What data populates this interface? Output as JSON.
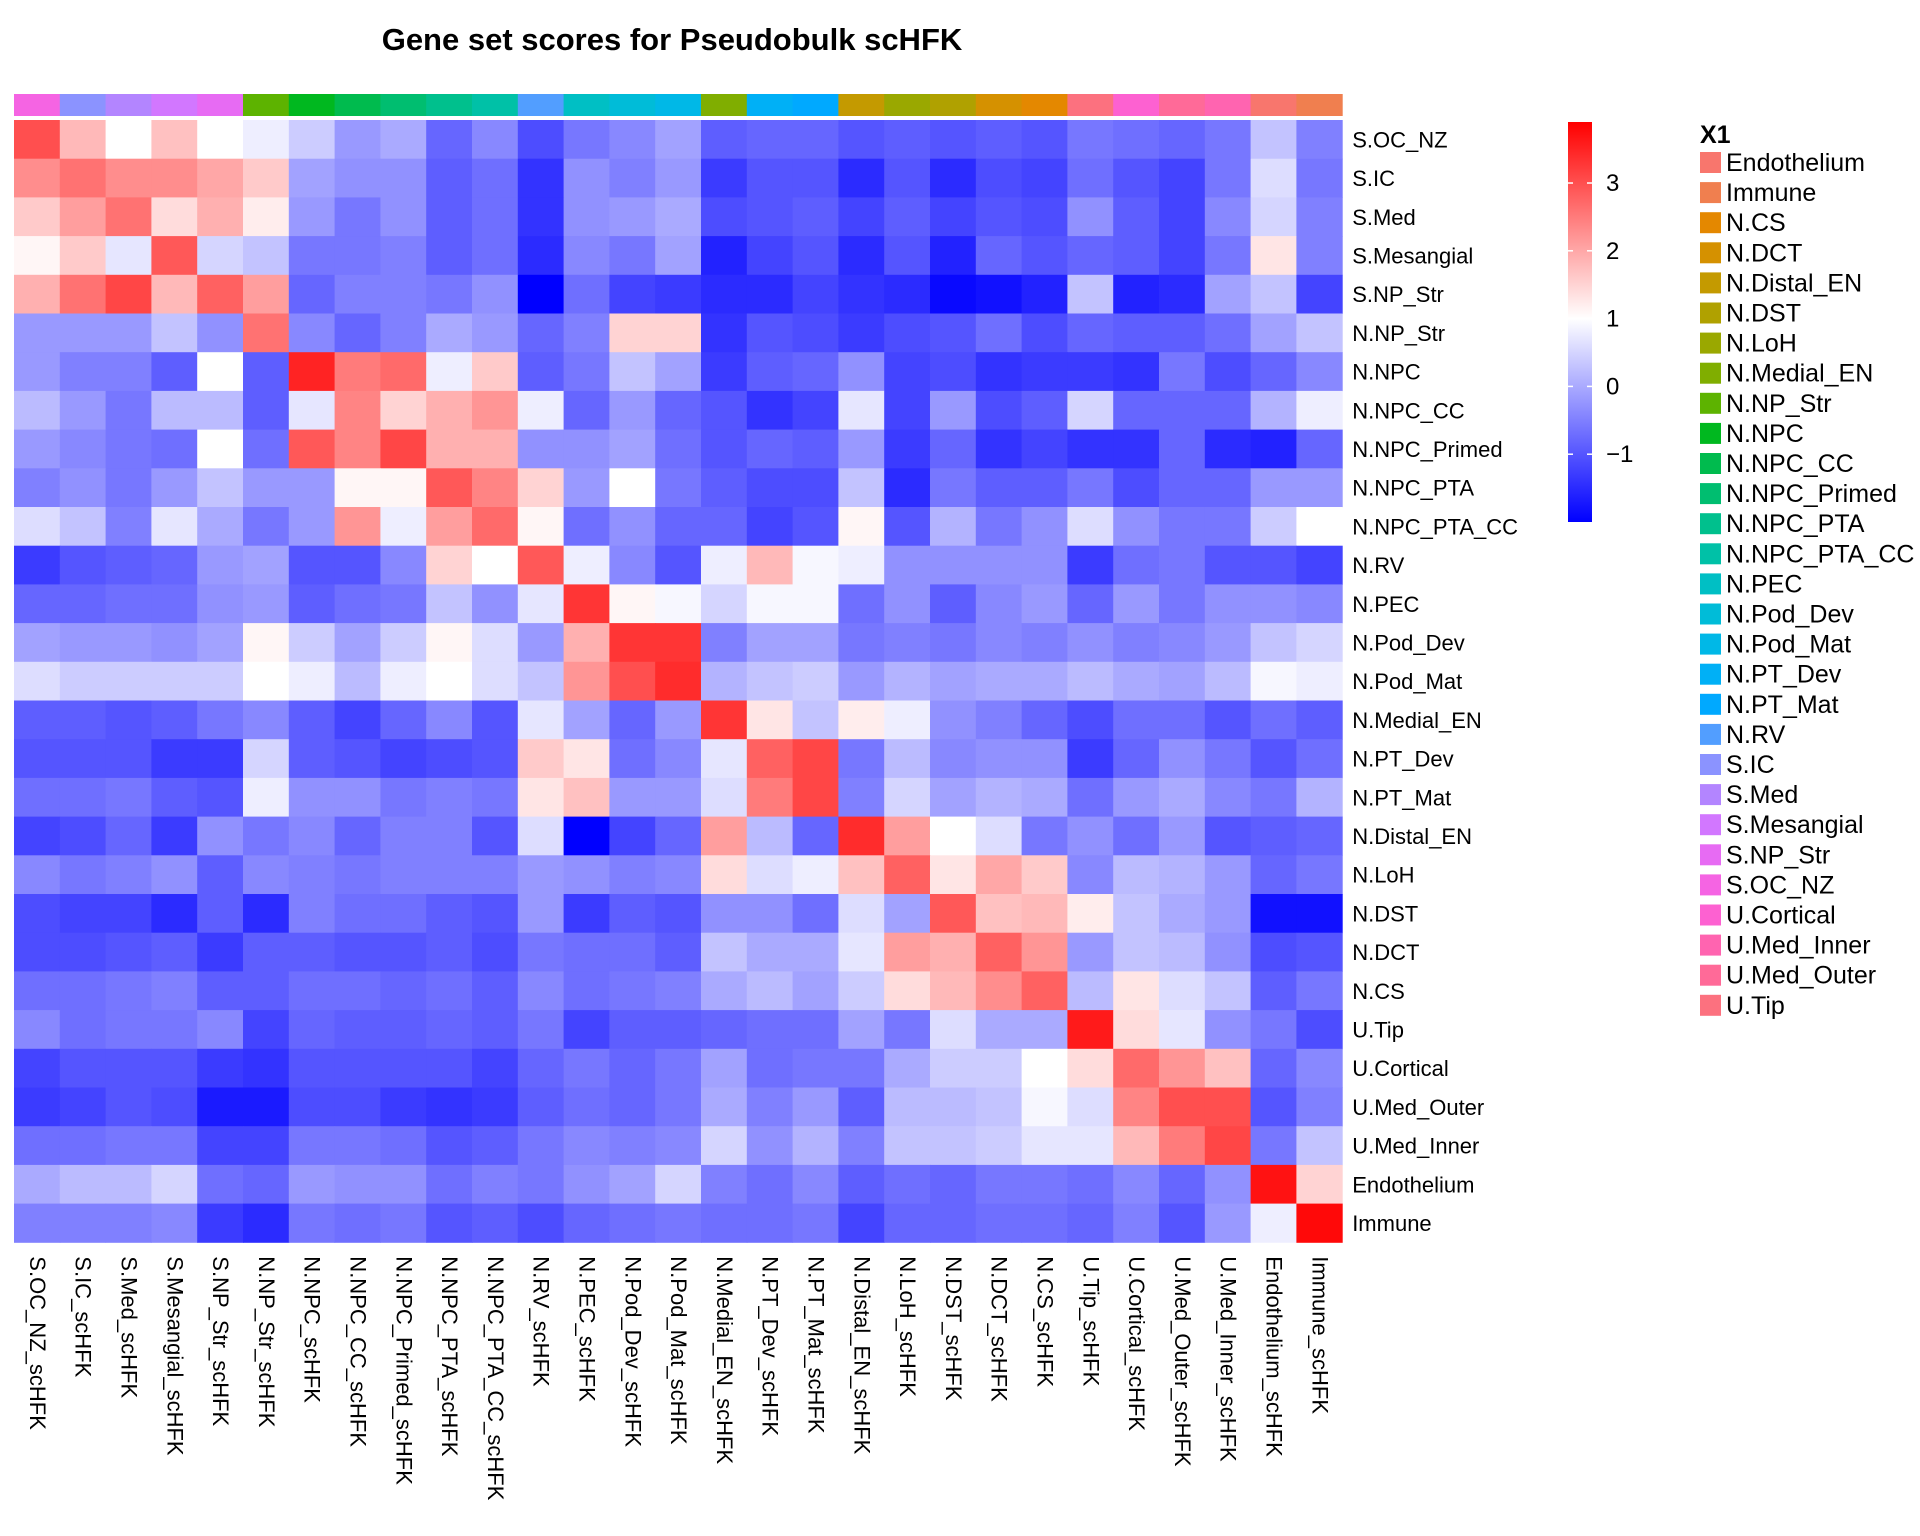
{
  "chart_data": {
    "type": "heatmap",
    "title": "Gene set scores for Pseudobulk scHFK",
    "rows": [
      "S.OC_NZ",
      "S.IC",
      "S.Med",
      "S.Mesangial",
      "S.NP_Str",
      "N.NP_Str",
      "N.NPC",
      "N.NPC_CC",
      "N.NPC_Primed",
      "N.NPC_PTA",
      "N.NPC_PTA_CC",
      "N.RV",
      "N.PEC",
      "N.Pod_Dev",
      "N.Pod_Mat",
      "N.Medial_EN",
      "N.PT_Dev",
      "N.PT_Mat",
      "N.Distal_EN",
      "N.LoH",
      "N.DST",
      "N.DCT",
      "N.CS",
      "U.Tip",
      "U.Cortical",
      "U.Med_Outer",
      "U.Med_Inner",
      "Endothelium",
      "Immune"
    ],
    "columns": [
      "S.OC_NZ_scHFK",
      "S.IC_scHFK",
      "S.Med_scHFK",
      "S.Mesangial_scHFK",
      "S.NP_Str_scHFK",
      "N.NP_Str_scHFK",
      "N.NPC_scHFK",
      "N.NPC_CC_scHFK",
      "N.NPC_Primed_scHFK",
      "N.NPC_PTA_scHFK",
      "N.NPC_PTA_CC_scHFK",
      "N.RV_scHFK",
      "N.PEC_scHFK",
      "N.Pod_Dev_scHFK",
      "N.Pod_Mat_scHFK",
      "N.Medial_EN_scHFK",
      "N.PT_Dev_scHFK",
      "N.PT_Mat_scHFK",
      "N.Distal_EN_scHFK",
      "N.LoH_scHFK",
      "N.DST_scHFK",
      "N.DCT_scHFK",
      "N.CS_scHFK",
      "U.Tip_scHFK",
      "U.Cortical_scHFK",
      "U.Med_Outer_scHFK",
      "U.Med_Inner_scHFK",
      "Endothelium_scHFK",
      "Immune_scHFK"
    ],
    "values": [
      [
        3.0,
        1.8,
        1.0,
        1.7,
        1.0,
        0.8,
        0.4,
        -0.2,
        0.0,
        -0.8,
        -0.4,
        -1.1,
        -0.6,
        -0.4,
        -0.1,
        -0.9,
        -0.8,
        -0.8,
        -1.0,
        -0.9,
        -1.0,
        -0.9,
        -1.0,
        -0.6,
        -0.7,
        -0.8,
        -0.6,
        0.3,
        -0.5
      ],
      [
        2.3,
        2.6,
        2.3,
        2.3,
        2.0,
        1.6,
        -0.1,
        -0.3,
        -0.3,
        -0.9,
        -0.7,
        -1.4,
        -0.3,
        -0.5,
        -0.2,
        -1.3,
        -1.0,
        -1.0,
        -1.5,
        -1.0,
        -1.5,
        -1.1,
        -1.2,
        -0.7,
        -1.0,
        -1.2,
        -0.6,
        0.6,
        -0.6
      ],
      [
        1.6,
        2.1,
        2.6,
        1.4,
        1.9,
        1.2,
        -0.2,
        -0.6,
        -0.3,
        -0.9,
        -0.7,
        -1.4,
        -0.3,
        -0.2,
        0.0,
        -1.1,
        -1.0,
        -0.9,
        -1.2,
        -0.9,
        -1.2,
        -1.0,
        -1.1,
        -0.3,
        -0.9,
        -1.2,
        -0.4,
        0.5,
        -0.5
      ],
      [
        1.1,
        1.6,
        0.7,
        2.9,
        0.5,
        0.3,
        -0.6,
        -0.6,
        -0.5,
        -0.9,
        -0.7,
        -1.5,
        -0.4,
        -0.6,
        -0.1,
        -1.6,
        -1.2,
        -1.0,
        -1.5,
        -1.0,
        -1.6,
        -0.8,
        -1.0,
        -0.8,
        -0.9,
        -1.2,
        -0.6,
        1.3,
        -0.5
      ],
      [
        1.9,
        2.6,
        3.1,
        1.8,
        2.8,
        2.1,
        -0.8,
        -0.5,
        -0.5,
        -0.6,
        -0.3,
        -2.0,
        -0.7,
        -1.2,
        -1.3,
        -1.5,
        -1.5,
        -1.2,
        -1.4,
        -1.5,
        -1.9,
        -1.8,
        -1.6,
        0.3,
        -1.6,
        -1.5,
        -0.1,
        0.3,
        -1.2
      ],
      [
        -0.2,
        -0.2,
        -0.2,
        0.3,
        -0.3,
        2.6,
        -0.4,
        -0.8,
        -0.5,
        0.0,
        -0.2,
        -0.8,
        -0.5,
        1.5,
        1.5,
        -1.4,
        -1.0,
        -1.1,
        -1.3,
        -1.1,
        -1.0,
        -0.7,
        -1.1,
        -0.8,
        -0.9,
        -0.9,
        -0.7,
        -0.1,
        0.3
      ],
      [
        -0.2,
        -0.5,
        -0.5,
        -0.9,
        1.0,
        -0.9,
        3.5,
        2.5,
        2.7,
        0.8,
        1.6,
        -0.9,
        -0.6,
        0.3,
        -0.1,
        -1.3,
        -0.9,
        -0.8,
        -0.3,
        -1.2,
        -1.1,
        -1.4,
        -1.3,
        -1.3,
        -1.4,
        -0.6,
        -1.1,
        -0.8,
        -0.4
      ],
      [
        0.2,
        -0.2,
        -0.6,
        0.2,
        0.2,
        -0.9,
        0.7,
        2.4,
        1.5,
        1.9,
        2.2,
        0.8,
        -0.8,
        -0.2,
        -0.8,
        -1.0,
        -1.4,
        -1.2,
        0.7,
        -1.2,
        -0.2,
        -1.1,
        -0.9,
        0.5,
        -0.8,
        -0.8,
        -0.8,
        0.1,
        0.8
      ],
      [
        -0.2,
        -0.4,
        -0.6,
        -0.7,
        1.0,
        -0.7,
        2.9,
        2.4,
        3.1,
        1.9,
        1.9,
        -0.3,
        -0.3,
        -0.1,
        -0.7,
        -1.0,
        -0.8,
        -0.9,
        -0.2,
        -1.3,
        -0.8,
        -1.4,
        -1.2,
        -1.4,
        -1.4,
        -0.8,
        -1.5,
        -1.6,
        -0.8
      ],
      [
        -0.5,
        -0.3,
        -0.6,
        -0.2,
        0.3,
        -0.2,
        -0.2,
        1.1,
        1.1,
        2.9,
        2.4,
        1.5,
        -0.2,
        1.0,
        -0.6,
        -0.9,
        -1.1,
        -1.1,
        0.3,
        -1.5,
        -0.6,
        -0.9,
        -0.9,
        -0.6,
        -1.1,
        -0.8,
        -0.8,
        -0.2,
        -0.2
      ],
      [
        0.6,
        0.3,
        -0.5,
        0.7,
        0.0,
        -0.6,
        -0.2,
        2.2,
        0.8,
        2.1,
        2.7,
        1.1,
        -0.7,
        -0.3,
        -0.8,
        -0.8,
        -1.2,
        -1.0,
        1.1,
        -1.0,
        0.1,
        -0.6,
        -0.3,
        0.6,
        -0.3,
        -0.6,
        -0.6,
        0.4,
        1.0
      ],
      [
        -1.3,
        -1.0,
        -0.9,
        -0.8,
        -0.2,
        -0.1,
        -1.0,
        -1.0,
        -0.4,
        1.5,
        1.0,
        2.9,
        0.8,
        -0.4,
        -1.0,
        0.8,
        1.8,
        0.9,
        0.8,
        -0.3,
        -0.3,
        -0.3,
        -0.3,
        -1.3,
        -0.7,
        -0.6,
        -1.0,
        -1.0,
        -1.2
      ],
      [
        -0.8,
        -0.8,
        -0.7,
        -0.7,
        -0.3,
        -0.2,
        -0.9,
        -0.7,
        -0.6,
        0.3,
        -0.3,
        0.7,
        3.3,
        1.1,
        0.9,
        0.5,
        0.9,
        0.9,
        -0.7,
        -0.3,
        -0.9,
        -0.4,
        -0.2,
        -0.8,
        -0.2,
        -0.6,
        -0.3,
        -0.3,
        -0.4
      ],
      [
        -0.1,
        -0.2,
        -0.2,
        -0.3,
        -0.1,
        1.1,
        0.4,
        -0.1,
        0.4,
        1.1,
        0.6,
        -0.2,
        1.9,
        3.3,
        3.3,
        -0.5,
        -0.1,
        -0.1,
        -0.6,
        -0.5,
        -0.6,
        -0.4,
        -0.5,
        -0.3,
        -0.5,
        -0.4,
        -0.2,
        0.3,
        0.5
      ],
      [
        0.6,
        0.4,
        0.4,
        0.4,
        0.4,
        1.0,
        0.8,
        0.2,
        0.8,
        1.0,
        0.6,
        0.3,
        2.2,
        3.0,
        3.4,
        0.1,
        0.3,
        0.4,
        -0.2,
        0.1,
        -0.1,
        0.0,
        0.0,
        0.2,
        0.0,
        -0.1,
        0.2,
        0.9,
        0.8
      ],
      [
        -0.9,
        -0.9,
        -1.0,
        -0.9,
        -0.6,
        -0.4,
        -0.9,
        -1.2,
        -0.8,
        -0.4,
        -1.0,
        0.7,
        -0.1,
        -0.8,
        -0.2,
        3.3,
        1.3,
        0.3,
        1.2,
        0.8,
        -0.3,
        -0.5,
        -0.8,
        -1.1,
        -0.7,
        -0.7,
        -1.0,
        -0.7,
        -0.9
      ],
      [
        -1.0,
        -1.0,
        -1.0,
        -1.3,
        -1.3,
        0.5,
        -0.9,
        -1.0,
        -1.2,
        -1.1,
        -1.0,
        1.6,
        1.3,
        -0.7,
        -0.4,
        0.7,
        2.8,
        3.1,
        -0.6,
        0.2,
        -0.4,
        -0.3,
        -0.3,
        -1.3,
        -0.8,
        -0.3,
        -0.6,
        -1.0,
        -0.7
      ],
      [
        -0.7,
        -0.7,
        -0.6,
        -0.9,
        -1.0,
        0.8,
        -0.3,
        -0.3,
        -0.6,
        -0.5,
        -0.6,
        1.3,
        1.7,
        -0.2,
        -0.2,
        0.6,
        2.5,
        3.1,
        -0.5,
        0.5,
        -0.1,
        0.1,
        0.0,
        -0.7,
        -0.2,
        0.0,
        -0.4,
        -0.6,
        0.1
      ],
      [
        -1.2,
        -1.1,
        -0.8,
        -1.3,
        -0.3,
        -0.6,
        -0.4,
        -0.8,
        -0.5,
        -0.5,
        -1.0,
        0.6,
        -2.0,
        -1.2,
        -0.8,
        2.1,
        0.2,
        -0.8,
        3.4,
        2.1,
        1.0,
        0.6,
        -0.6,
        -0.3,
        -0.7,
        -0.2,
        -1.0,
        -0.9,
        -0.8
      ],
      [
        -0.4,
        -0.6,
        -0.5,
        -0.3,
        -0.9,
        -0.4,
        -0.5,
        -0.6,
        -0.5,
        -0.5,
        -0.5,
        -0.2,
        -0.3,
        -0.5,
        -0.4,
        1.4,
        0.6,
        0.8,
        1.7,
        2.8,
        1.3,
        2.0,
        1.6,
        -0.4,
        0.2,
        0.1,
        -0.2,
        -0.8,
        -0.6
      ],
      [
        -1.1,
        -1.2,
        -1.2,
        -1.5,
        -0.9,
        -1.5,
        -0.5,
        -0.7,
        -0.7,
        -0.9,
        -1.0,
        -0.2,
        -1.3,
        -0.9,
        -1.0,
        -0.3,
        -0.3,
        -0.7,
        0.6,
        -0.1,
        2.9,
        1.7,
        1.8,
        1.2,
        0.3,
        0.0,
        -0.2,
        -1.8,
        -1.8
      ],
      [
        -1.1,
        -1.1,
        -1.0,
        -0.9,
        -1.3,
        -0.9,
        -0.9,
        -1.0,
        -1.0,
        -0.9,
        -1.1,
        -0.6,
        -0.7,
        -0.7,
        -0.9,
        0.3,
        0.0,
        0.0,
        0.7,
        2.1,
        1.9,
        2.8,
        2.2,
        -0.2,
        0.3,
        0.2,
        -0.3,
        -1.1,
        -1.0
      ],
      [
        -0.7,
        -0.7,
        -0.6,
        -0.5,
        -0.9,
        -0.9,
        -0.7,
        -0.7,
        -0.8,
        -0.7,
        -0.9,
        -0.4,
        -0.7,
        -0.6,
        -0.5,
        0.0,
        0.2,
        -0.1,
        0.4,
        1.4,
        1.8,
        2.3,
        2.8,
        0.2,
        1.3,
        0.6,
        0.3,
        -0.9,
        -0.6
      ],
      [
        -0.4,
        -0.7,
        -0.6,
        -0.6,
        -0.4,
        -1.2,
        -0.8,
        -0.9,
        -0.9,
        -0.8,
        -0.9,
        -0.6,
        -1.2,
        -0.9,
        -0.9,
        -0.8,
        -0.7,
        -0.7,
        -0.1,
        -0.6,
        0.6,
        0.0,
        0.0,
        3.6,
        1.4,
        0.7,
        -0.3,
        -0.6,
        -1.1
      ],
      [
        -1.2,
        -1.0,
        -1.0,
        -1.0,
        -1.3,
        -1.4,
        -1.0,
        -1.0,
        -1.0,
        -1.0,
        -1.2,
        -0.8,
        -0.6,
        -0.8,
        -0.6,
        -0.1,
        -0.7,
        -0.6,
        -0.6,
        0.0,
        0.4,
        0.4,
        1.0,
        1.4,
        2.7,
        2.2,
        1.7,
        -0.8,
        -0.4
      ],
      [
        -1.3,
        -1.2,
        -1.0,
        -1.1,
        -1.7,
        -1.7,
        -1.1,
        -1.1,
        -1.3,
        -1.4,
        -1.3,
        -0.9,
        -0.7,
        -0.8,
        -0.6,
        0.0,
        -0.5,
        -0.2,
        -0.9,
        0.2,
        0.2,
        0.3,
        0.9,
        0.6,
        2.4,
        3.0,
        3.0,
        -1.0,
        -0.5
      ],
      [
        -0.7,
        -0.7,
        -0.6,
        -0.6,
        -1.2,
        -1.2,
        -0.6,
        -0.6,
        -0.7,
        -1.0,
        -0.9,
        -0.6,
        -0.4,
        -0.5,
        -0.4,
        0.5,
        -0.3,
        0.1,
        -0.5,
        0.3,
        0.3,
        0.4,
        0.7,
        0.7,
        1.8,
        2.5,
        3.1,
        -0.6,
        0.3
      ],
      [
        0.0,
        0.2,
        0.2,
        0.5,
        -0.7,
        -0.8,
        -0.2,
        -0.3,
        -0.3,
        -0.7,
        -0.5,
        -0.6,
        -0.3,
        -0.1,
        0.5,
        -0.5,
        -0.7,
        -0.4,
        -0.9,
        -0.7,
        -0.8,
        -0.6,
        -0.6,
        -0.7,
        -0.4,
        -0.8,
        -0.3,
        3.7,
        1.5
      ],
      [
        -0.5,
        -0.5,
        -0.5,
        -0.4,
        -1.3,
        -1.5,
        -0.6,
        -0.7,
        -0.6,
        -1.0,
        -0.9,
        -1.1,
        -0.8,
        -0.7,
        -0.6,
        -0.7,
        -0.7,
        -0.6,
        -1.2,
        -0.8,
        -0.8,
        -0.7,
        -0.7,
        -0.8,
        -0.5,
        -1.0,
        -0.2,
        0.8,
        3.8
      ]
    ],
    "color_scale": {
      "min": -2.0,
      "mid": 1.0,
      "max": 3.9,
      "low_color": "#0000FF",
      "mid_color": "#FFFFFF",
      "high_color": "#FF0000"
    },
    "colorbar_ticks": [
      3,
      2,
      1,
      0,
      -1
    ],
    "annotation": {
      "title": "X1",
      "column_groups": [
        "S.OC_NZ",
        "S.IC",
        "S.Med",
        "S.Mesangial",
        "S.NP_Str",
        "N.NP_Str",
        "N.NPC",
        "N.NPC_CC",
        "N.NPC_Primed",
        "N.NPC_PTA",
        "N.NPC_PTA_CC",
        "N.RV",
        "N.PEC",
        "N.Pod_Dev",
        "N.Pod_Mat",
        "N.Medial_EN",
        "N.PT_Dev",
        "N.PT_Mat",
        "N.Distal_EN",
        "N.LoH",
        "N.DST",
        "N.DCT",
        "N.CS",
        "U.Tip",
        "U.Cortical",
        "U.Med_Outer",
        "U.Med_Inner",
        "Endothelium",
        "Immune"
      ],
      "legend": [
        {
          "label": "Endothelium",
          "color": "#F8766D"
        },
        {
          "label": "Immune",
          "color": "#F07F4F"
        },
        {
          "label": "N.CS",
          "color": "#E48800"
        },
        {
          "label": "N.DCT",
          "color": "#D59100"
        },
        {
          "label": "N.Distal_EN",
          "color": "#C49A00"
        },
        {
          "label": "N.DST",
          "color": "#B0A100"
        },
        {
          "label": "N.LoH",
          "color": "#9AA800"
        },
        {
          "label": "N.Medial_EN",
          "color": "#80AE00"
        },
        {
          "label": "N.NP_Str",
          "color": "#5DB300"
        },
        {
          "label": "N.NPC",
          "color": "#00B81F"
        },
        {
          "label": "N.NPC_CC",
          "color": "#00BB4E"
        },
        {
          "label": "N.NPC_Primed",
          "color": "#00BE70"
        },
        {
          "label": "N.NPC_PTA",
          "color": "#00C08D"
        },
        {
          "label": "N.NPC_PTA_CC",
          "color": "#00C1A7"
        },
        {
          "label": "N.PEC",
          "color": "#00BFC4"
        },
        {
          "label": "N.Pod_Dev",
          "color": "#00BCD8"
        },
        {
          "label": "N.Pod_Mat",
          "color": "#00B8E7"
        },
        {
          "label": "N.PT_Dev",
          "color": "#00B0F6"
        },
        {
          "label": "N.PT_Mat",
          "color": "#00A9FF"
        },
        {
          "label": "N.RV",
          "color": "#529EFF"
        },
        {
          "label": "S.IC",
          "color": "#8B93FF"
        },
        {
          "label": "S.Med",
          "color": "#B385FF"
        },
        {
          "label": "S.Mesangial",
          "color": "#D277FF"
        },
        {
          "label": "S.NP_Str",
          "color": "#E76BF3"
        },
        {
          "label": "S.OC_NZ",
          "color": "#F564E3"
        },
        {
          "label": "U.Cortical",
          "color": "#FD61D1"
        },
        {
          "label": "U.Med_Inner",
          "color": "#FF64B0"
        },
        {
          "label": "U.Med_Outer",
          "color": "#FF6A98"
        },
        {
          "label": "U.Tip",
          "color": "#FC717F"
        }
      ]
    }
  }
}
